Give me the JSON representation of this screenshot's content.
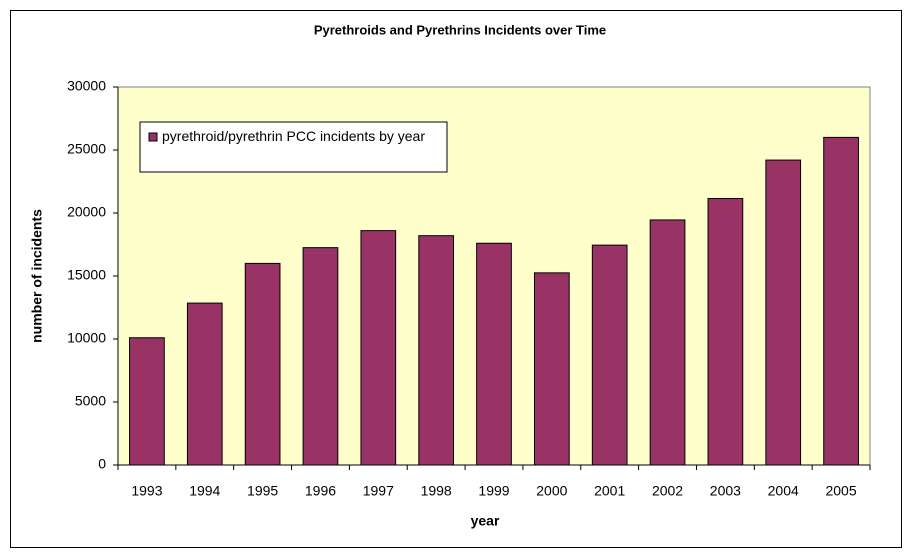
{
  "chart_data": {
    "type": "bar",
    "title": "Pyrethroids and Pyrethrins Incidents over Time",
    "x_label": "year",
    "y_label": "number of incidents",
    "categories": [
      "1993",
      "1994",
      "1995",
      "1996",
      "1997",
      "1998",
      "1999",
      "2000",
      "2001",
      "2002",
      "2003",
      "2004",
      "2005"
    ],
    "series": [
      {
        "name": "pyrethroid/pyrethrin PCC incidents by year",
        "color": "#993366",
        "values": [
          10100,
          12850,
          16000,
          17250,
          18600,
          18200,
          17600,
          15250,
          17450,
          19450,
          21150,
          24200,
          26000
        ]
      }
    ],
    "ylim": [
      0,
      30000
    ],
    "yticks": [
      0,
      5000,
      10000,
      15000,
      20000,
      25000,
      30000
    ],
    "grid": false,
    "legend": "upper left",
    "plot_background": "#FFFFCC"
  }
}
